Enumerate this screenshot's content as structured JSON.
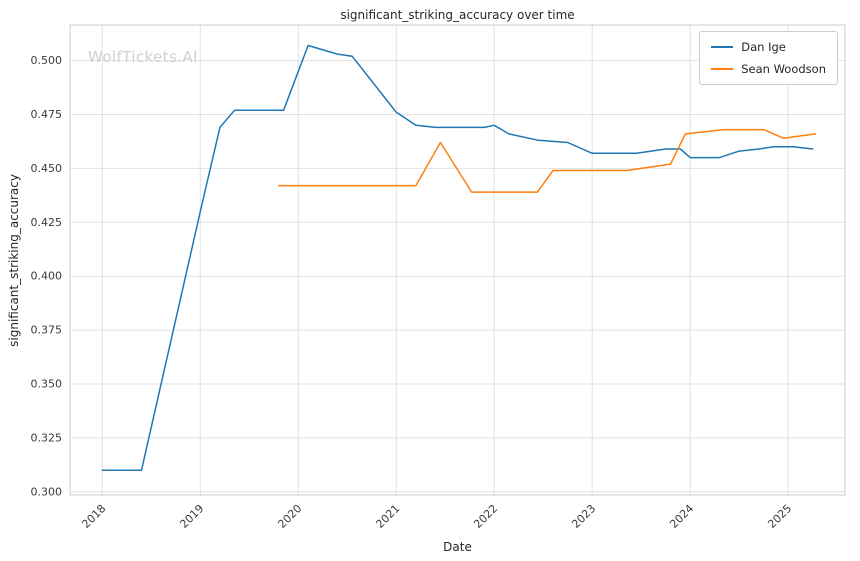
{
  "watermark": "WolfTickets.AI",
  "chart_data": {
    "type": "line",
    "title": "significant_striking_accuracy over time",
    "xlabel": "Date",
    "ylabel": "significant_striking_accuracy",
    "xlim": [
      2017.67,
      2025.58
    ],
    "ylim": [
      0.2985,
      0.5165
    ],
    "xticks": [
      2018,
      2019,
      2020,
      2021,
      2022,
      2023,
      2024,
      2025
    ],
    "yticks": [
      0.3,
      0.325,
      0.35,
      0.375,
      0.4,
      0.425,
      0.45,
      0.475,
      0.5
    ],
    "grid": true,
    "legend_position": "upper right",
    "style": {
      "background": "#ffffff",
      "grid_color": "#e2e2e2",
      "spine_color": "#cccccc",
      "tick_label_color": "#3b3b3b",
      "watermark_color": "#d0d0d0"
    },
    "series": [
      {
        "name": "Dan Ige",
        "color": "#1f77b4",
        "x": [
          2018.0,
          2018.4,
          2019.0,
          2019.2,
          2019.35,
          2019.85,
          2020.1,
          2020.4,
          2020.55,
          2021.0,
          2021.2,
          2021.4,
          2021.9,
          2022.0,
          2022.15,
          2022.45,
          2022.75,
          2023.0,
          2023.45,
          2023.6,
          2023.75,
          2023.9,
          2024.0,
          2024.3,
          2024.5,
          2024.7,
          2024.85,
          2025.05,
          2025.25
        ],
        "y": [
          0.31,
          0.31,
          0.43,
          0.469,
          0.477,
          0.477,
          0.507,
          0.503,
          0.502,
          0.476,
          0.47,
          0.469,
          0.469,
          0.47,
          0.466,
          0.463,
          0.462,
          0.457,
          0.457,
          0.458,
          0.459,
          0.459,
          0.455,
          0.455,
          0.458,
          0.459,
          0.46,
          0.46,
          0.459
        ]
      },
      {
        "name": "Sean Woodson",
        "color": "#ff7f0e",
        "x": [
          2019.8,
          2021.2,
          2021.45,
          2021.77,
          2022.44,
          2022.6,
          2023.35,
          2023.5,
          2023.8,
          2023.95,
          2024.15,
          2024.35,
          2024.75,
          2024.95,
          2025.28
        ],
        "y": [
          0.442,
          0.442,
          0.462,
          0.439,
          0.439,
          0.449,
          0.449,
          0.45,
          0.452,
          0.466,
          0.467,
          0.468,
          0.468,
          0.464,
          0.466
        ]
      }
    ]
  }
}
